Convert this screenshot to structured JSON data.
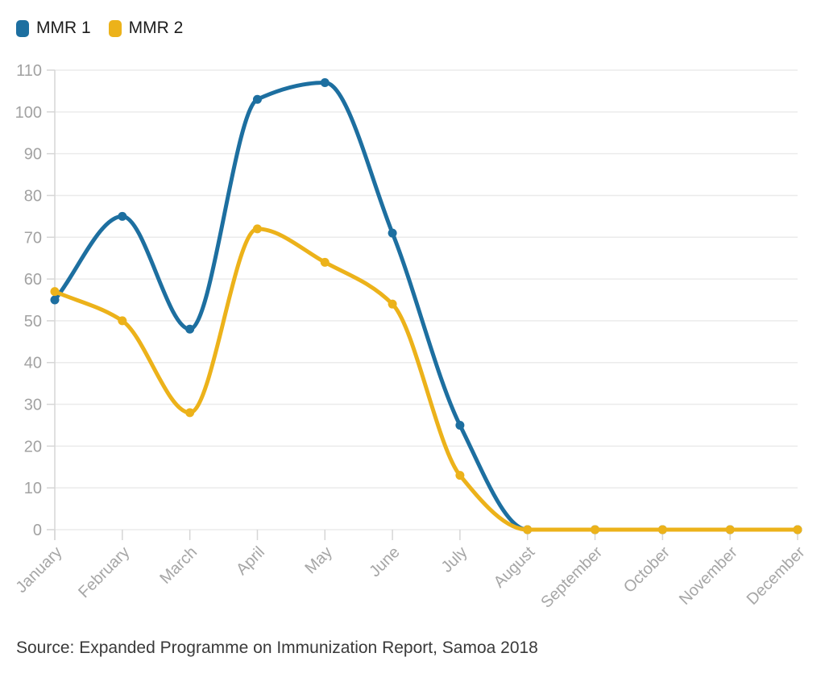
{
  "source": {
    "text": "Source: Expanded Programme on Immunization Report, Samoa 2018"
  },
  "chart_data": {
    "type": "line",
    "title": "",
    "categories": [
      "January",
      "February",
      "March",
      "April",
      "May",
      "June",
      "July",
      "August",
      "September",
      "October",
      "November",
      "December"
    ],
    "series": [
      {
        "name": "MMR 1",
        "color": "#1d6fa0",
        "values": [
          55,
          75,
          48,
          103,
          107,
          71,
          25,
          0,
          0,
          0,
          0,
          0
        ]
      },
      {
        "name": "MMR 2",
        "color": "#ecb21a",
        "values": [
          57,
          50,
          28,
          72,
          64,
          54,
          13,
          0,
          0,
          0,
          0,
          0
        ]
      }
    ],
    "xlabel": "",
    "ylabel": "",
    "ylim": [
      0,
      110
    ],
    "y_tick_step": 10,
    "y_tick_labels": [
      "0",
      "10",
      "20",
      "30",
      "40",
      "50",
      "60",
      "70",
      "80",
      "90",
      "100",
      "110"
    ],
    "grid": "horizontal",
    "legend_position": "top-left",
    "curve": "smooth-monotone",
    "marker": "circle",
    "grid_color": "#ebebeb",
    "axis_tick_color": "#d6d6d6",
    "label_color": "#a4a4a4"
  }
}
